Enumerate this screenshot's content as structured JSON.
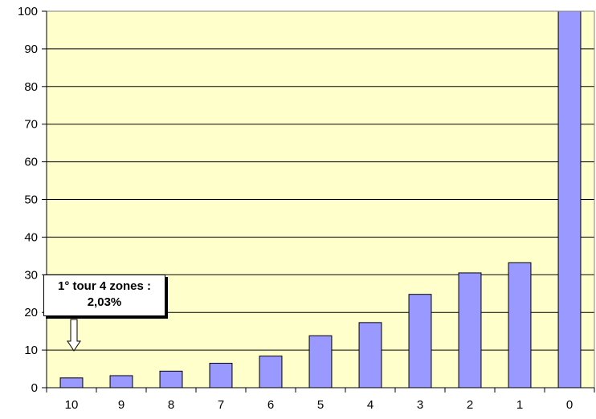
{
  "chart_data": {
    "type": "bar",
    "categories": [
      "10",
      "9",
      "8",
      "7",
      "6",
      "5",
      "4",
      "3",
      "2",
      "1",
      "0"
    ],
    "values": [
      2.6,
      3.2,
      4.4,
      6.5,
      8.4,
      13.8,
      17.3,
      24.8,
      30.5,
      33.2,
      100
    ],
    "ylim": [
      0,
      100
    ],
    "yticks": [
      "0",
      "10",
      "20",
      "30",
      "40",
      "50",
      "60",
      "70",
      "80",
      "90",
      "100"
    ],
    "xlabel": "",
    "ylabel": "",
    "title": "",
    "grid": true,
    "annotation": {
      "line1": "1° tour 4 zones  :",
      "line2": "2,03%",
      "points_to_category": "10"
    },
    "colors": {
      "plot_background": "#FFFFCC",
      "bar_fill": "#9999FF",
      "bar_stroke": "#000000",
      "gridline": "#000000"
    }
  }
}
